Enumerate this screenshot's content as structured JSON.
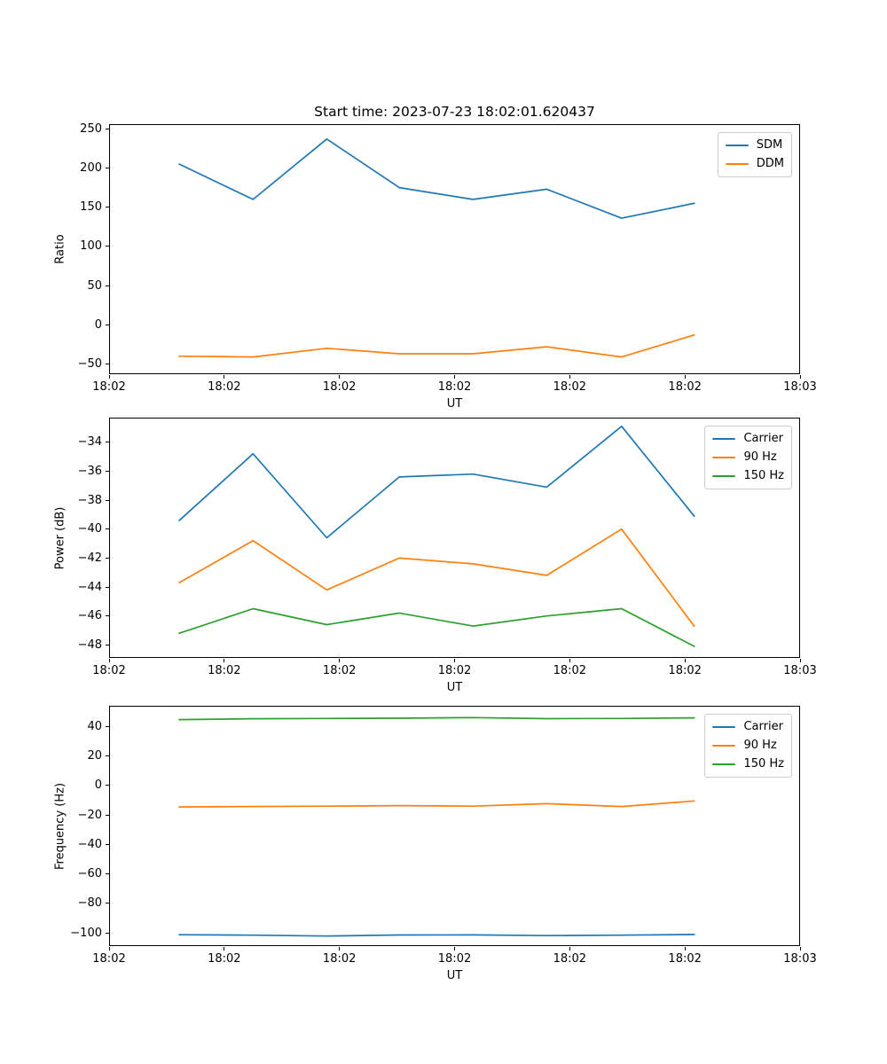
{
  "figure": {
    "title": "Start time: 2023-07-23 18:02:01.620437",
    "background_color": "#ffffff",
    "text_color": "#000000"
  },
  "chart_data": [
    {
      "type": "line",
      "name": "ratio-plot",
      "xlabel": "UT",
      "ylabel": "Ratio",
      "xlim": [
        0,
        60
      ],
      "ylim": [
        -63,
        256
      ],
      "xticks": [
        0,
        10,
        20,
        30,
        40,
        50,
        60
      ],
      "xtick_labels": [
        "18:02",
        "18:02",
        "18:02",
        "18:02",
        "18:02",
        "18:02",
        "18:03"
      ],
      "yticks": [
        250,
        200,
        150,
        100,
        50,
        0,
        -50
      ],
      "grid": false,
      "legend_position": "upper right",
      "x_seconds": [
        6.1,
        12.5,
        18.9,
        25.2,
        31.6,
        38.0,
        44.5,
        50.8
      ],
      "series": [
        {
          "name": "SDM",
          "color": "#1f77b4",
          "values": [
            205,
            160,
            237,
            175,
            160,
            173,
            136,
            155
          ]
        },
        {
          "name": "DDM",
          "color": "#ff7f0e",
          "values": [
            -40,
            -41,
            -30,
            -37,
            -37,
            -28,
            -41,
            -13
          ]
        }
      ]
    },
    {
      "type": "line",
      "name": "power-plot",
      "xlabel": "UT",
      "ylabel": "Power (dB)",
      "xlim": [
        0,
        60
      ],
      "ylim": [
        -48.9,
        -32.3
      ],
      "xticks": [
        0,
        10,
        20,
        30,
        40,
        50,
        60
      ],
      "xtick_labels": [
        "18:02",
        "18:02",
        "18:02",
        "18:02",
        "18:02",
        "18:02",
        "18:03"
      ],
      "yticks": [
        -34,
        -36,
        -38,
        -40,
        -42,
        -44,
        -46,
        -48
      ],
      "grid": false,
      "legend_position": "upper right",
      "x_seconds": [
        6.1,
        12.5,
        18.9,
        25.2,
        31.6,
        38.0,
        44.5,
        50.8
      ],
      "series": [
        {
          "name": "Carrier",
          "color": "#1f77b4",
          "values": [
            -39.4,
            -34.8,
            -40.6,
            -36.4,
            -36.2,
            -37.1,
            -32.9,
            -39.1
          ]
        },
        {
          "name": "90 Hz",
          "color": "#ff7f0e",
          "values": [
            -43.7,
            -40.8,
            -44.2,
            -42.0,
            -42.4,
            -43.2,
            -40.0,
            -46.7
          ]
        },
        {
          "name": "150 Hz",
          "color": "#2ca02c",
          "values": [
            -47.2,
            -45.5,
            -46.6,
            -45.8,
            -46.7,
            -46.0,
            -45.5,
            -48.1
          ]
        }
      ]
    },
    {
      "type": "line",
      "name": "frequency-plot",
      "xlabel": "UT",
      "ylabel": "Frequency (Hz)",
      "xlim": [
        0,
        60
      ],
      "ylim": [
        -109,
        54
      ],
      "xticks": [
        0,
        10,
        20,
        30,
        40,
        50,
        60
      ],
      "xtick_labels": [
        "18:02",
        "18:02",
        "18:02",
        "18:02",
        "18:02",
        "18:02",
        "18:03"
      ],
      "yticks": [
        40,
        20,
        0,
        -20,
        -40,
        -60,
        -80,
        -100
      ],
      "grid": false,
      "legend_position": "upper right",
      "x_seconds": [
        6.1,
        12.5,
        18.9,
        25.2,
        31.6,
        38.0,
        44.5,
        50.8
      ],
      "series": [
        {
          "name": "Carrier",
          "color": "#1f77b4",
          "values": [
            -101.3,
            -101.6,
            -102.2,
            -101.5,
            -101.4,
            -101.9,
            -101.6,
            -101.1
          ]
        },
        {
          "name": "90 Hz",
          "color": "#ff7f0e",
          "values": [
            -14.6,
            -14.3,
            -14.1,
            -13.7,
            -14.1,
            -12.4,
            -14.3,
            -10.6
          ]
        },
        {
          "name": "150 Hz",
          "color": "#2ca02c",
          "values": [
            44.6,
            45.2,
            45.4,
            45.6,
            46.0,
            45.3,
            45.4,
            45.8
          ]
        }
      ]
    }
  ]
}
